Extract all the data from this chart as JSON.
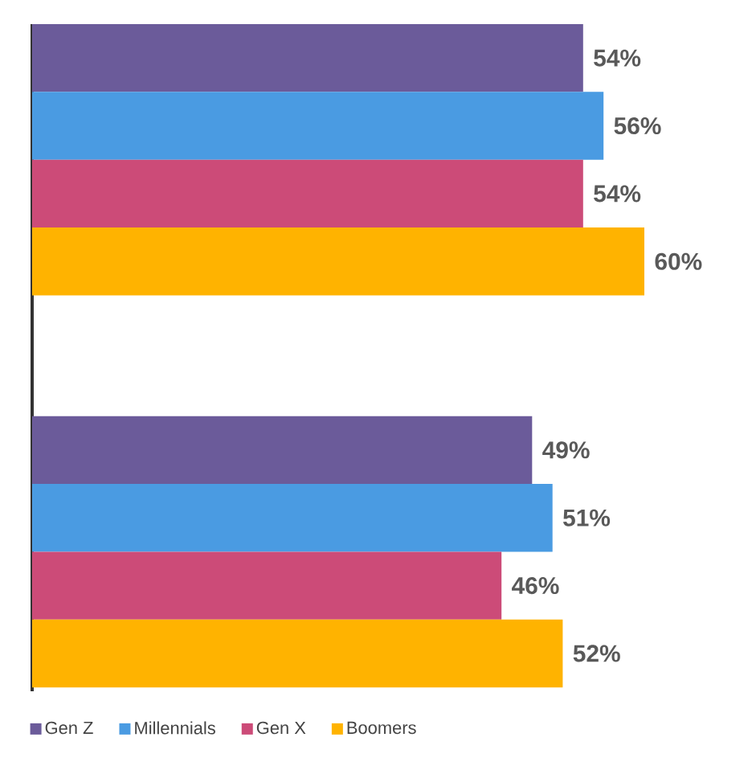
{
  "chart_data": {
    "type": "bar",
    "orientation": "horizontal",
    "categories": [
      null,
      null
    ],
    "legend": "bottom",
    "series": [
      {
        "name": "Gen Z",
        "color": "#6b5b9a",
        "values": [
          54,
          49
        ],
        "value_labels": [
          "54%",
          "49%"
        ]
      },
      {
        "name": "Millennials",
        "color": "#4a9be2",
        "values": [
          56,
          51
        ],
        "value_labels": [
          "56%",
          "51%"
        ]
      },
      {
        "name": "Gen X",
        "color": "#cc4b78",
        "values": [
          54,
          46
        ],
        "value_labels": [
          "54%",
          "46%"
        ]
      },
      {
        "name": "Boomers",
        "color": "#ffb300",
        "values": [
          60,
          52
        ],
        "value_labels": [
          "60%",
          "52%"
        ]
      }
    ]
  }
}
